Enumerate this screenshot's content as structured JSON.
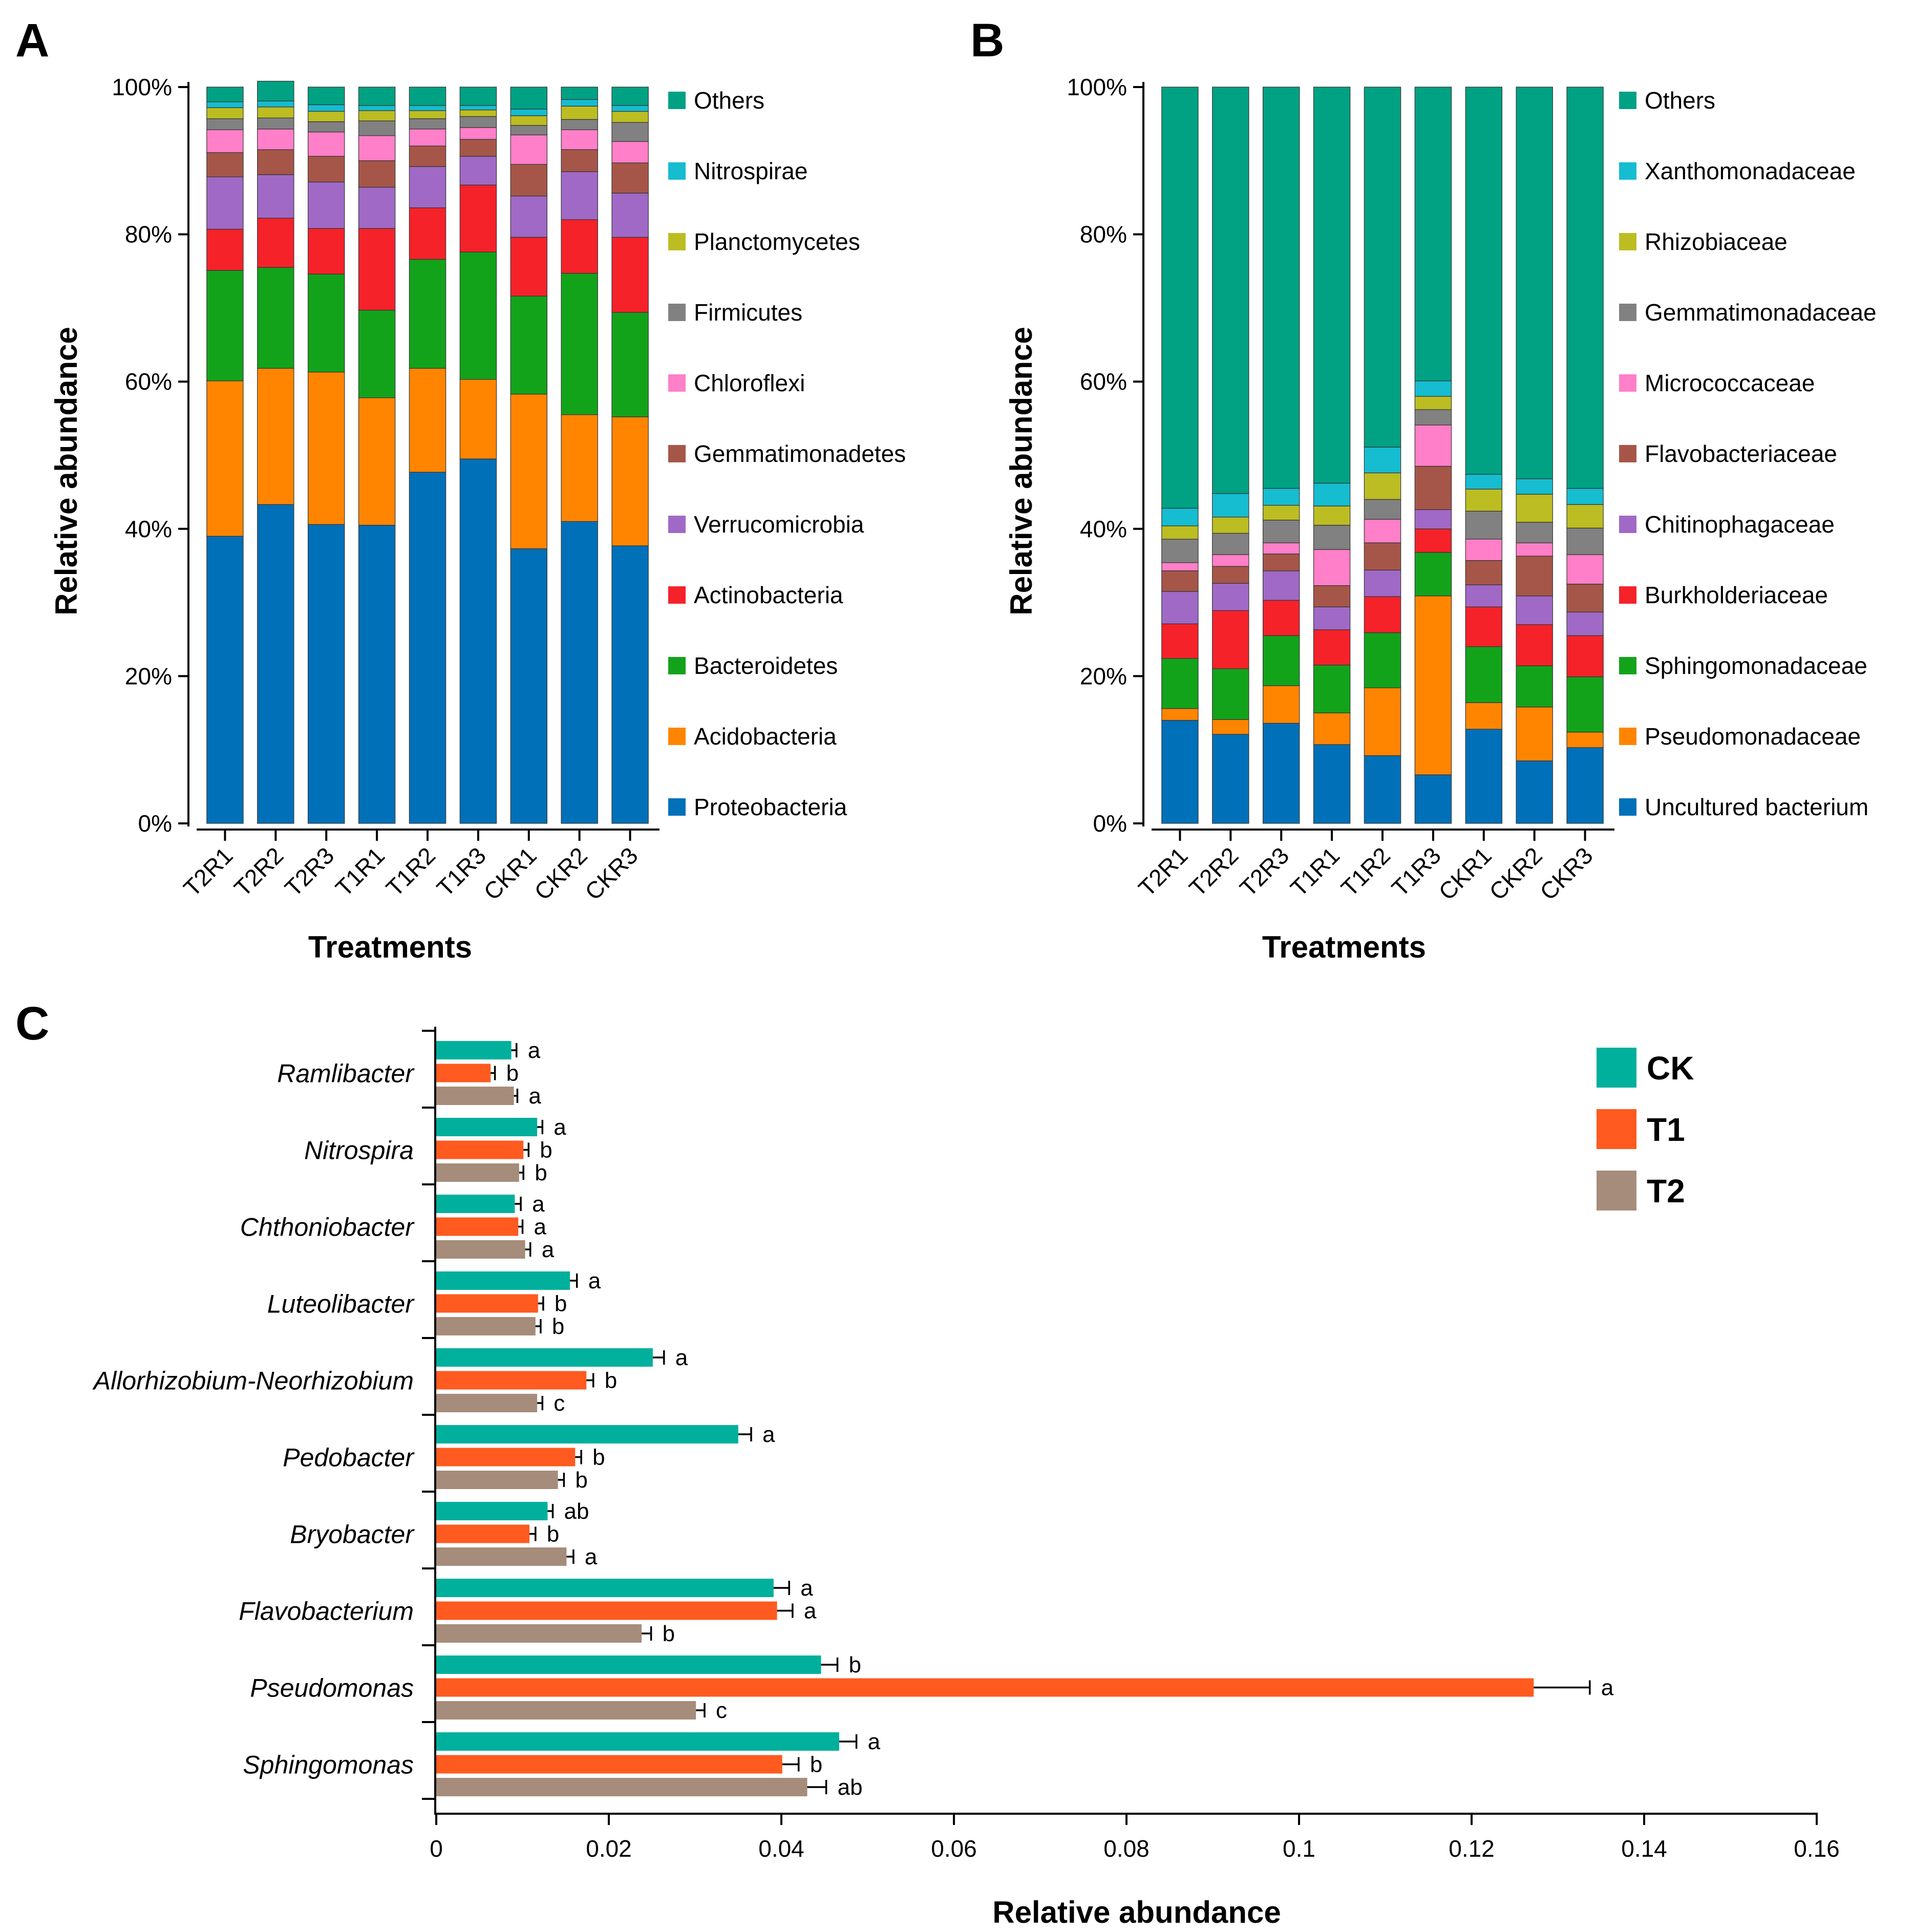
{
  "chart_data": [
    {
      "id": "A",
      "type": "bar",
      "stacked": true,
      "panel_label": "A",
      "xlabel": "Treatments",
      "ylabel": "Relative abundance",
      "yticks": [
        "0%",
        "20%",
        "40%",
        "60%",
        "80%",
        "100%"
      ],
      "ylim": [
        0,
        100
      ],
      "categories": [
        "T2R1",
        "T2R2",
        "T2R3",
        "T1R1",
        "T1R2",
        "T1R3",
        "CKR1",
        "CKR2",
        "CKR3"
      ],
      "series": [
        {
          "name": "Proteobacteria",
          "color": "#0070b8",
          "values": [
            39.0,
            43.3,
            40.6,
            40.5,
            47.7,
            49.5,
            37.3,
            41.0,
            37.7
          ]
        },
        {
          "name": "Acidobacteria",
          "color": "#ff8500",
          "values": [
            21.1,
            18.5,
            20.7,
            17.3,
            14.1,
            10.8,
            21.0,
            14.5,
            17.5
          ]
        },
        {
          "name": "Bacteroidetes",
          "color": "#13a31b",
          "values": [
            15.0,
            13.7,
            13.3,
            11.9,
            14.8,
            17.3,
            13.3,
            19.2,
            14.2
          ]
        },
        {
          "name": "Actinobacteria",
          "color": "#f5222a",
          "values": [
            5.6,
            6.7,
            6.2,
            11.1,
            7.0,
            9.1,
            8.0,
            7.3,
            10.2
          ]
        },
        {
          "name": "Verrucomicrobia",
          "color": "#a069c6",
          "values": [
            7.1,
            5.9,
            6.3,
            5.6,
            5.6,
            3.9,
            5.6,
            6.5,
            6.0
          ]
        },
        {
          "name": "Gemmatimonadetes",
          "color": "#a65648",
          "values": [
            3.3,
            3.4,
            3.5,
            3.6,
            2.8,
            2.3,
            4.3,
            3.0,
            4.1
          ]
        },
        {
          "name": "Chloroflexi",
          "color": "#ff7fc8",
          "values": [
            3.1,
            2.8,
            3.3,
            3.4,
            2.3,
            1.6,
            4.0,
            2.7,
            2.9
          ]
        },
        {
          "name": "Firmicutes",
          "color": "#818181",
          "values": [
            1.5,
            1.5,
            1.4,
            2.0,
            1.4,
            1.5,
            1.3,
            1.4,
            2.6
          ]
        },
        {
          "name": "Planctomycetes",
          "color": "#bcbd22",
          "values": [
            1.5,
            1.5,
            1.4,
            1.4,
            1.1,
            0.9,
            1.3,
            1.8,
            1.5
          ]
        },
        {
          "name": "Nitrospirae",
          "color": "#16bcd0",
          "values": [
            0.8,
            0.8,
            0.9,
            0.7,
            0.7,
            0.6,
            0.9,
            0.9,
            0.8
          ]
        },
        {
          "name": "Others",
          "color": "#01a183",
          "values": [
            2.0,
            2.7,
            2.4,
            2.5,
            2.5,
            2.5,
            3.0,
            1.7,
            2.5
          ]
        }
      ]
    },
    {
      "id": "B",
      "type": "bar",
      "stacked": true,
      "panel_label": "B",
      "xlabel": "Treatments",
      "ylabel": "Relative abundance",
      "yticks": [
        "0%",
        "20%",
        "40%",
        "60%",
        "80%",
        "100%"
      ],
      "ylim": [
        0,
        100
      ],
      "categories": [
        "T2R1",
        "T2R2",
        "T2R3",
        "T1R1",
        "T1R2",
        "T1R3",
        "CKR1",
        "CKR2",
        "CKR3"
      ],
      "series": [
        {
          "name": "Uncultured bacterium",
          "color": "#0070b8",
          "values": [
            14.0,
            12.1,
            13.6,
            10.7,
            9.2,
            6.6,
            12.8,
            8.5,
            10.3
          ]
        },
        {
          "name": "Pseudomonadaceae",
          "color": "#ff8500",
          "values": [
            1.6,
            2.0,
            5.1,
            4.3,
            9.2,
            24.3,
            3.6,
            7.3,
            2.1
          ]
        },
        {
          "name": "Sphingomonadaceae",
          "color": "#13a31b",
          "values": [
            6.8,
            6.9,
            6.8,
            6.5,
            7.5,
            5.9,
            7.6,
            5.6,
            7.5
          ]
        },
        {
          "name": "Burkholderiaceae",
          "color": "#f5222a",
          "values": [
            4.7,
            7.9,
            4.8,
            4.8,
            4.9,
            3.2,
            5.4,
            5.6,
            5.6
          ]
        },
        {
          "name": "Chitinophagaceae",
          "color": "#a069c6",
          "values": [
            4.4,
            3.7,
            4.0,
            3.1,
            3.6,
            2.6,
            3.0,
            3.9,
            3.2
          ]
        },
        {
          "name": "Flavobacteriaceae",
          "color": "#a65648",
          "values": [
            2.8,
            2.3,
            2.3,
            2.9,
            3.7,
            5.9,
            3.3,
            5.4,
            3.8
          ]
        },
        {
          "name": "Micrococcaceae",
          "color": "#ff7fc8",
          "values": [
            1.1,
            1.6,
            1.5,
            4.9,
            3.2,
            5.6,
            2.9,
            1.8,
            4.0
          ]
        },
        {
          "name": "Gemmatimonadaceae",
          "color": "#818181",
          "values": [
            3.2,
            2.9,
            3.1,
            3.3,
            2.7,
            2.1,
            3.8,
            2.8,
            3.6
          ]
        },
        {
          "name": "Rhizobiaceae",
          "color": "#bcbd22",
          "values": [
            1.8,
            2.2,
            2.0,
            2.6,
            3.6,
            1.8,
            3.0,
            3.8,
            3.2
          ]
        },
        {
          "name": "Xanthomonadaceae",
          "color": "#16bcd0",
          "values": [
            2.4,
            3.2,
            2.3,
            3.1,
            3.5,
            2.1,
            2.0,
            2.1,
            2.2
          ]
        },
        {
          "name": "Others",
          "color": "#01a183",
          "values": [
            57.2,
            55.2,
            54.5,
            53.8,
            48.9,
            39.9,
            52.6,
            53.2,
            54.5
          ]
        }
      ]
    },
    {
      "id": "C",
      "type": "bar",
      "orientation": "horizontal",
      "panel_label": "C",
      "xlabel": "Relative abundance",
      "xlim": [
        0,
        0.16
      ],
      "xticks": [
        "0",
        "0.02",
        "0.04",
        "0.06",
        "0.08",
        "0.1",
        "0.12",
        "0.14",
        "0.16"
      ],
      "categories": [
        "Ramlibacter",
        "Nitrospira",
        "Chthoniobacter",
        "Luteolibacter",
        "Allorhizobium-Neorhizobium",
        "Pedobacter",
        "Bryobacter",
        "Flavobacterium",
        "Pseudomonas",
        "Sphingomonas"
      ],
      "series": [
        {
          "name": "CK",
          "color": "#00b09c",
          "values": [
            0.0087,
            0.0117,
            0.0091,
            0.0155,
            0.0251,
            0.035,
            0.0129,
            0.0391,
            0.0446,
            0.0467
          ],
          "errors": [
            0.0006,
            0.0006,
            0.0007,
            0.0008,
            0.0013,
            0.0015,
            0.0006,
            0.0018,
            0.0019,
            0.002
          ],
          "letters": [
            "a",
            "a",
            "a",
            "a",
            "a",
            "a",
            "ab",
            "a",
            "b",
            "a"
          ]
        },
        {
          "name": "T1",
          "color": "#ff5a1f",
          "values": [
            0.0063,
            0.0101,
            0.0095,
            0.0118,
            0.0174,
            0.0161,
            0.0108,
            0.0395,
            0.1272,
            0.0401
          ],
          "errors": [
            0.0005,
            0.0006,
            0.0005,
            0.0006,
            0.0008,
            0.0007,
            0.0007,
            0.0018,
            0.0065,
            0.0019
          ],
          "letters": [
            "b",
            "b",
            "a",
            "b",
            "b",
            "b",
            "b",
            "a",
            "a",
            "b"
          ]
        },
        {
          "name": "T2",
          "color": "#a68c7a",
          "values": [
            0.009,
            0.0096,
            0.0103,
            0.0115,
            0.0117,
            0.0141,
            0.0151,
            0.0238,
            0.0301,
            0.043
          ],
          "errors": [
            0.0004,
            0.0005,
            0.0006,
            0.0006,
            0.0006,
            0.0007,
            0.0008,
            0.0011,
            0.001,
            0.0022
          ],
          "letters": [
            "a",
            "b",
            "a",
            "b",
            "c",
            "b",
            "a",
            "b",
            "c",
            "ab"
          ]
        }
      ]
    }
  ]
}
